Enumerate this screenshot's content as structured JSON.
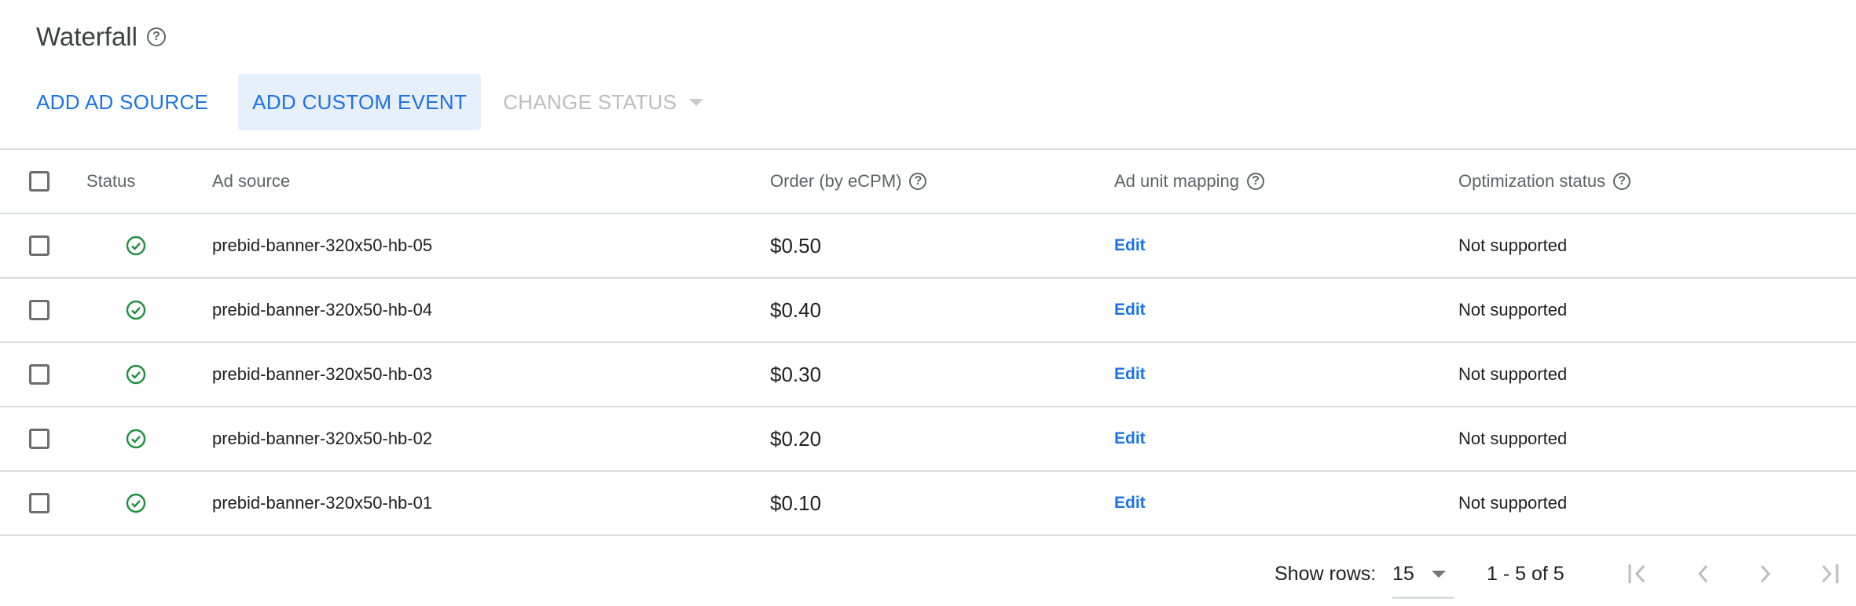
{
  "title": "Waterfall",
  "title_help_icon": "help-circle-icon",
  "toolbar": {
    "add_ad_source": "ADD AD SOURCE",
    "add_custom_event": "ADD CUSTOM EVENT",
    "change_status": "CHANGE STATUS"
  },
  "table": {
    "headers": {
      "status": "Status",
      "ad_source": "Ad source",
      "order": "Order (by eCPM)",
      "mapping": "Ad unit mapping",
      "optimization": "Optimization status"
    },
    "rows": [
      {
        "status": "enabled",
        "ad_source": "prebid-banner-320x50-hb-05",
        "order": "$0.50",
        "mapping": "Edit",
        "optimization": "Not supported"
      },
      {
        "status": "enabled",
        "ad_source": "prebid-banner-320x50-hb-04",
        "order": "$0.40",
        "mapping": "Edit",
        "optimization": "Not supported"
      },
      {
        "status": "enabled",
        "ad_source": "prebid-banner-320x50-hb-03",
        "order": "$0.30",
        "mapping": "Edit",
        "optimization": "Not supported"
      },
      {
        "status": "enabled",
        "ad_source": "prebid-banner-320x50-hb-02",
        "order": "$0.20",
        "mapping": "Edit",
        "optimization": "Not supported"
      },
      {
        "status": "enabled",
        "ad_source": "prebid-banner-320x50-hb-01",
        "order": "$0.10",
        "mapping": "Edit",
        "optimization": "Not supported"
      }
    ]
  },
  "pagination": {
    "show_rows_label": "Show rows:",
    "rows_value": "15",
    "range": "1 - 5 of 5"
  },
  "colors": {
    "accent": "#1a73e8",
    "status_ok": "#1e8e3e",
    "active_button_bg": "#e8effc"
  }
}
